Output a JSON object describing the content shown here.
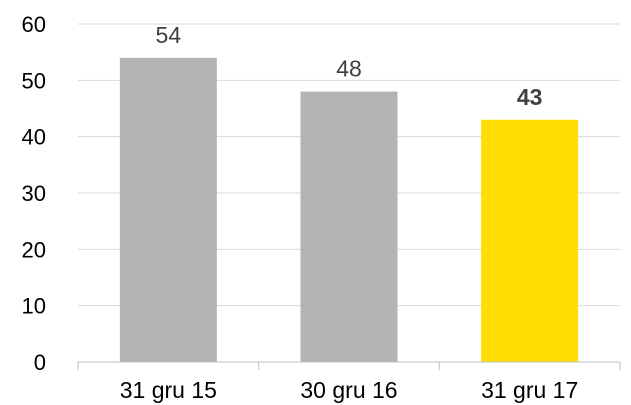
{
  "chart_data": {
    "type": "bar",
    "categories": [
      "31 gru 15",
      "30 gru 16",
      "31 gru 17"
    ],
    "values": [
      54,
      48,
      43
    ],
    "data_labels": [
      "54",
      "48",
      "43"
    ],
    "title": "",
    "xlabel": "",
    "ylabel": "",
    "ylim": [
      0,
      60
    ],
    "yticks": [
      "0",
      "10",
      "20",
      "30",
      "40",
      "50",
      "60"
    ],
    "grid": true,
    "legend": "none",
    "highlight_index": 2,
    "colors": {
      "bar": "#b3b3b3",
      "highlight": "#ffdd00",
      "grid": "#d9d9d9",
      "axis": "#bfbfbf"
    }
  }
}
